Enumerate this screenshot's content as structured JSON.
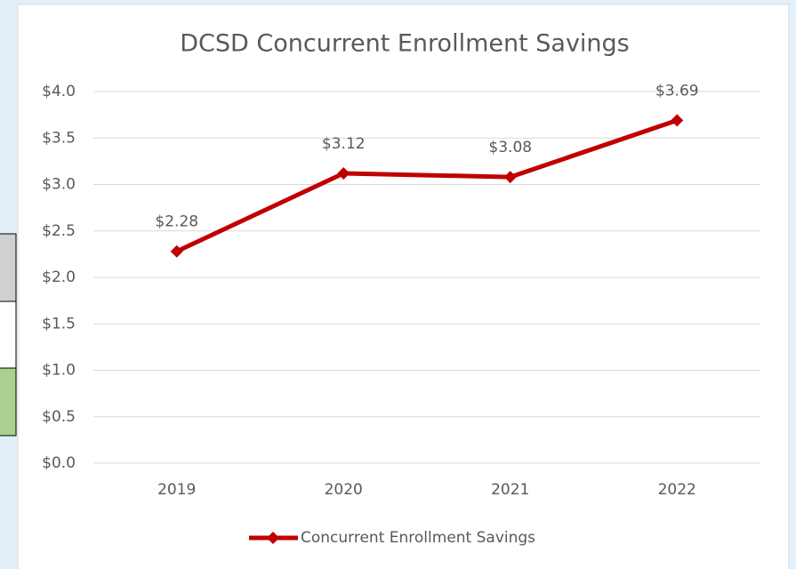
{
  "chart_data": {
    "type": "line",
    "title": "DCSD Concurrent Enrollment Savings",
    "categories": [
      "2019",
      "2020",
      "2021",
      "2022"
    ],
    "series": [
      {
        "name": "Concurrent Enrollment Savings",
        "color": "#c00000",
        "values": [
          2.28,
          3.12,
          3.08,
          3.69
        ],
        "value_labels": [
          "$2.28",
          "$3.12",
          "$3.08",
          "$3.69"
        ]
      }
    ],
    "ylim": [
      0,
      4
    ],
    "yticks": [
      {
        "value": 0,
        "label": "$0.0"
      },
      {
        "value": 0.5,
        "label": "$0.5"
      },
      {
        "value": 1,
        "label": "$1.0"
      },
      {
        "value": 1.5,
        "label": "$1.5"
      },
      {
        "value": 2,
        "label": "$2.0"
      },
      {
        "value": 2.5,
        "label": "$2.5"
      },
      {
        "value": 3,
        "label": "$3.0"
      },
      {
        "value": 3.5,
        "label": "$3.5"
      },
      {
        "value": 4,
        "label": "$4.0"
      }
    ],
    "grid": true,
    "legend": "bottom"
  }
}
